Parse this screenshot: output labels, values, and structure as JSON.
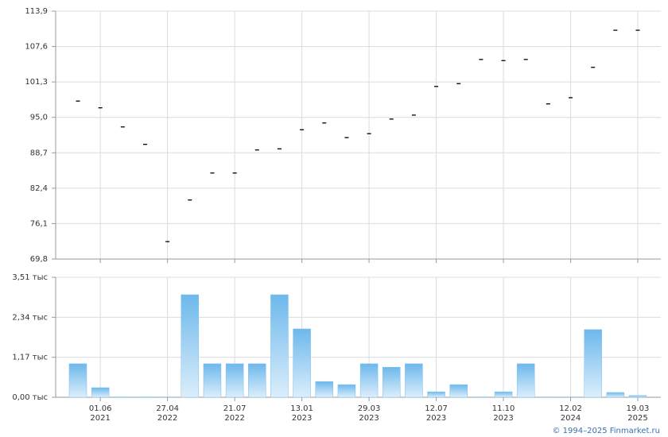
{
  "chart_data": [
    {
      "type": "tick",
      "color": "#000000",
      "values": [
        97.9,
        96.7,
        93.3,
        90.2,
        72.9,
        80.3,
        85.1,
        85.1,
        89.2,
        89.4,
        92.8,
        94.0,
        91.4,
        92.1,
        94.7,
        95.4,
        100.5,
        101.0,
        105.3,
        105.1,
        105.3,
        97.4,
        98.5,
        103.9,
        110.5,
        110.5
      ],
      "ylim": [
        69.8,
        113.9
      ],
      "yticks": [
        {
          "value": 69.8,
          "label": "69,8"
        },
        {
          "value": 76.1,
          "label": "76,1"
        },
        {
          "value": 82.4,
          "label": "82,4"
        },
        {
          "value": 88.7,
          "label": "88,7"
        },
        {
          "value": 95.0,
          "label": "95,0"
        },
        {
          "value": 101.3,
          "label": "101,3"
        },
        {
          "value": 107.6,
          "label": "107,6"
        },
        {
          "value": 113.9,
          "label": "113,9"
        }
      ],
      "grid": true
    },
    {
      "type": "bar",
      "color": "#7fbfee",
      "categories": [
        null,
        [
          "01.06",
          "2021"
        ],
        null,
        null,
        [
          "27.04",
          "2022"
        ],
        null,
        null,
        [
          "21.07",
          "2022"
        ],
        null,
        null,
        [
          "13.01",
          "2023"
        ],
        null,
        null,
        [
          "29.03",
          "2023"
        ],
        null,
        null,
        [
          "12.07",
          "2023"
        ],
        null,
        null,
        [
          "11.10",
          "2023"
        ],
        null,
        null,
        [
          "12.02",
          "2024"
        ],
        null,
        null,
        [
          "19.03",
          "2025"
        ]
      ],
      "values": [
        0.98,
        0.28,
        0.01,
        0.01,
        0.01,
        3.0,
        0.98,
        0.98,
        0.98,
        3.0,
        2.0,
        0.46,
        0.37,
        0.98,
        0.88,
        0.98,
        0.16,
        0.37,
        0.01,
        0.16,
        0.98,
        0.01,
        0.01,
        1.98,
        0.14,
        0.05
      ],
      "ylim": [
        0,
        3.51
      ],
      "yticks": [
        {
          "value": 0,
          "label": "0,00 тыс"
        },
        {
          "value": 1.17,
          "label": "1,17 тыс"
        },
        {
          "value": 2.34,
          "label": "2,34 тыс"
        },
        {
          "value": 3.51,
          "label": "3,51 тыс"
        }
      ],
      "grid": true
    }
  ],
  "copyright": "© 1994–2025 Finmarket.ru"
}
